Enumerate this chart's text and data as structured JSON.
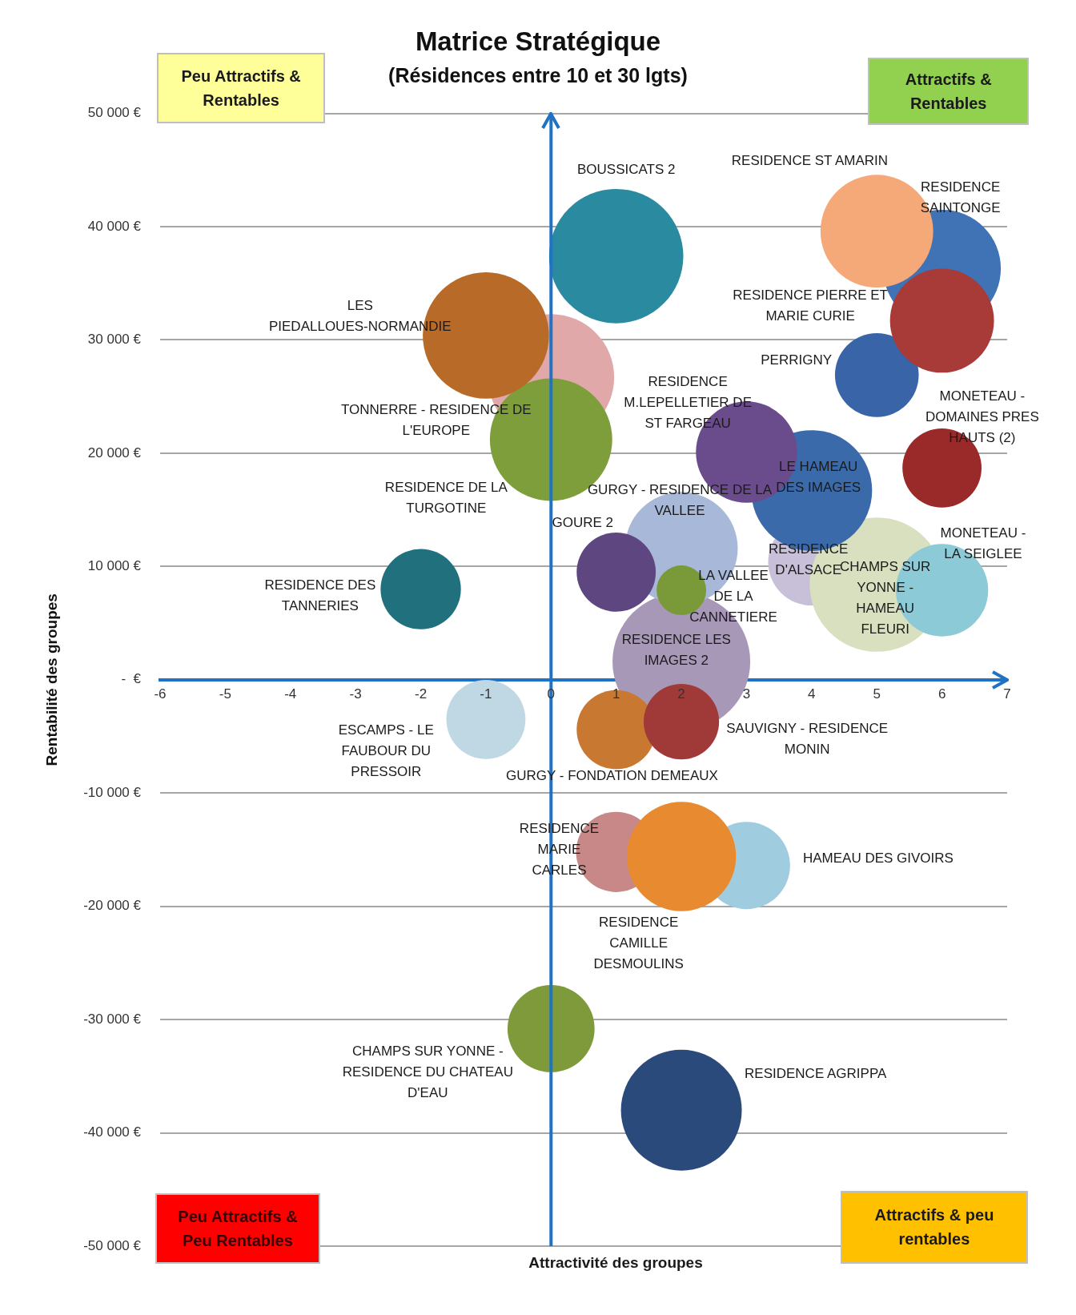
{
  "chart_data": {
    "type": "bubble",
    "title": "Matrice Stratégique",
    "subtitle": "(Résidences entre 10 et 30 lgts)",
    "xlabel": "Attractivité des groupes",
    "ylabel": "Rentabilité des groupes",
    "xlim": [
      -6,
      7
    ],
    "xticks": [
      -6,
      -5,
      -4,
      -3,
      -2,
      -1,
      0,
      1,
      2,
      3,
      4,
      5,
      6,
      7
    ],
    "ylim": [
      -50000,
      50000
    ],
    "yticks": [
      {
        "value": -50000,
        "label": "-50 000 €"
      },
      {
        "value": -40000,
        "label": "-40 000 €"
      },
      {
        "value": -30000,
        "label": "-30 000 €"
      },
      {
        "value": -20000,
        "label": "-20 000 €"
      },
      {
        "value": -10000,
        "label": "-10 000 €"
      },
      {
        "value": 0,
        "label": "-  €"
      },
      {
        "value": 10000,
        "label": "10 000 €"
      },
      {
        "value": 20000,
        "label": "20 000 €"
      },
      {
        "value": 30000,
        "label": "30 000 €"
      },
      {
        "value": 40000,
        "label": "40 000 €"
      },
      {
        "value": 50000,
        "label": "50 000 €"
      }
    ],
    "grid": "y",
    "legend": false,
    "ref_lines": [
      {
        "axis": "x",
        "value": 0,
        "color": "#1f72c4"
      }
    ],
    "annotations": [
      "Peu Attractifs & Rentables",
      "Attractifs & Rentables",
      "Peu Attractifs & Peu Rentables",
      "Attractifs & peu rentables"
    ],
    "series": [
      {
        "name": "BOUSSICATS 2",
        "color": "#2a8aa0",
        "x": [
          1
        ],
        "values": [
          37400
        ],
        "sizes": [
          0.95
        ]
      },
      {
        "name": "RESIDENCE ST AMARIN",
        "color": "#f5a878",
        "x": [
          5
        ],
        "values": [
          39600
        ],
        "sizes": [
          0.67
        ]
      },
      {
        "name": "RESIDENCE PIERRE ET MARIE CURIE",
        "color": "#a83a38",
        "x": [
          6
        ],
        "values": [
          31700
        ],
        "sizes": [
          0.57
        ]
      },
      {
        "name": "RESIDENCE SAINTONGE",
        "color": "#3f73b5",
        "x": [
          6
        ],
        "values": [
          36300
        ],
        "sizes": [
          0.73
        ]
      },
      {
        "name": "PERRIGNY",
        "color": "#3a64a8",
        "x": [
          5
        ],
        "values": [
          26900
        ],
        "sizes": [
          0.37
        ]
      },
      {
        "name": "LES PIEDALLOUES-NORMANDIE",
        "color": "#b86a28",
        "x": [
          -1
        ],
        "values": [
          30400
        ],
        "sizes": [
          0.84
        ]
      },
      {
        "name": "RESIDENCE DE LA TURGOTINE",
        "color": "#7e9e3c",
        "x": [
          0
        ],
        "values": [
          21200
        ],
        "sizes": [
          0.79
        ]
      },
      {
        "name": "TONNERRE - RESIDENCE DE L'EUROPE",
        "color": "#e0a8a8",
        "x": [
          0
        ],
        "values": [
          26700
        ],
        "sizes": [
          0.84
        ]
      },
      {
        "name": "RESIDENCE M.LEPELLETIER DE ST FARGEAU",
        "color": "#6a4c8c",
        "x": [
          3
        ],
        "values": [
          20100
        ],
        "sizes": [
          0.54
        ]
      },
      {
        "name": "LE HAMEAU DES IMAGES",
        "color": "#3a6aaa",
        "x": [
          4
        ],
        "values": [
          16700
        ],
        "sizes": [
          0.77
        ]
      },
      {
        "name": "MONETEAU - DOMAINES PRES HAUTS (2)",
        "color": "#9a2a2a",
        "x": [
          6
        ],
        "values": [
          18700
        ],
        "sizes": [
          0.33
        ]
      },
      {
        "name": "GOURE 2",
        "color": "#5e4680",
        "x": [
          1
        ],
        "values": [
          9500
        ],
        "sizes": [
          0.33
        ]
      },
      {
        "name": "LA VALLEE DE LA CANNETIERE",
        "color": "#7a9a3a",
        "x": [
          2
        ],
        "values": [
          7900
        ],
        "sizes": [
          0.13
        ]
      },
      {
        "name": "GURGY - RESIDENCE DE LA VALLEE",
        "color": "#a8b8d8",
        "x": [
          2
        ],
        "values": [
          11600
        ],
        "sizes": [
          0.67
        ]
      },
      {
        "name": "MONETEAU - LA SEIGLEE",
        "color": "#8ccad8",
        "x": [
          6
        ],
        "values": [
          7900
        ],
        "sizes": [
          0.45
        ]
      },
      {
        "name": "CHAMPS SUR YONNE - HAMEAU FLEURI",
        "color": "#d8e0c0",
        "x": [
          5
        ],
        "values": [
          8400
        ],
        "sizes": [
          0.95
        ]
      },
      {
        "name": "RESIDENCE D'ALSACE",
        "color": "#c8c0d8",
        "x": [
          4
        ],
        "values": [
          10400
        ],
        "sizes": [
          0.4
        ]
      },
      {
        "name": "RESIDENCE DES TANNERIES",
        "color": "#20707e",
        "x": [
          -2
        ],
        "values": [
          8000
        ],
        "sizes": [
          0.34
        ]
      },
      {
        "name": "SAUVIGNY - RESIDENCE MONIN",
        "color": "#a03a38",
        "x": [
          2
        ],
        "values": [
          -3700
        ],
        "sizes": [
          0.3
        ]
      },
      {
        "name": "GURGY - FONDATION DEMEAUX",
        "color": "#c87830",
        "x": [
          1
        ],
        "values": [
          -4400
        ],
        "sizes": [
          0.33
        ]
      },
      {
        "name": "RESIDENCE LES IMAGES 2",
        "color": "#a898b8",
        "x": [
          2
        ],
        "values": [
          1600
        ],
        "sizes": [
          1
        ]
      },
      {
        "name": "ESCAMPS - LE FAUBOUR DU PRESSOIR",
        "color": "#c0d8e4",
        "x": [
          -1
        ],
        "values": [
          -3500
        ],
        "sizes": [
          0.33
        ]
      },
      {
        "name": "RESIDENCE CAMILLE DESMOULINS",
        "color": "#e88a30",
        "x": [
          2
        ],
        "values": [
          -15600
        ],
        "sizes": [
          0.63
        ]
      },
      {
        "name": "RESIDENCE MARIE CARLES",
        "color": "#c88888",
        "x": [
          1
        ],
        "values": [
          -15200
        ],
        "sizes": [
          0.34
        ]
      },
      {
        "name": "HAMEAU DES GIVOIRS",
        "color": "#a0cce0",
        "x": [
          3
        ],
        "values": [
          -16400
        ],
        "sizes": [
          0.4
        ]
      },
      {
        "name": "CHAMPS SUR YONNE - RESIDENCE DU CHATEAU D'EAU",
        "color": "#7e9a3a",
        "x": [
          0
        ],
        "values": [
          -30800
        ],
        "sizes": [
          0.4
        ]
      },
      {
        "name": "RESIDENCE AGRIPPA",
        "color": "#2a4a7c",
        "x": [
          2
        ],
        "values": [
          -38000
        ],
        "sizes": [
          0.77
        ]
      }
    ]
  }
}
